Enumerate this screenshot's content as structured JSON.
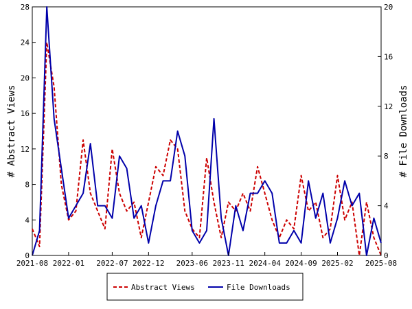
{
  "chart_data": {
    "type": "line",
    "xlabel": "",
    "ylabel": "# Abstract Views",
    "y2label": "# File Downloads",
    "ylim": [
      0,
      28
    ],
    "y2lim": [
      0,
      20
    ],
    "yticks": [
      0,
      4,
      8,
      12,
      16,
      20,
      24,
      28
    ],
    "y2ticks": [
      0,
      4,
      8,
      12,
      16,
      20
    ],
    "xlim": [
      "2021-08",
      "2025-08"
    ],
    "xticks": [
      "2021-08",
      "2022-01",
      "2022-07",
      "2022-12",
      "2023-06",
      "2023-11",
      "2024-04",
      "2024-09",
      "2025-02",
      "2025-08"
    ],
    "grid": false,
    "legend": "bottom-center",
    "x": [
      "2021-08",
      "2021-09",
      "2021-10",
      "2021-11",
      "2021-12",
      "2022-01",
      "2022-02",
      "2022-03",
      "2022-04",
      "2022-05",
      "2022-06",
      "2022-07",
      "2022-08",
      "2022-09",
      "2022-10",
      "2022-11",
      "2022-12",
      "2023-01",
      "2023-02",
      "2023-03",
      "2023-04",
      "2023-05",
      "2023-06",
      "2023-07",
      "2023-08",
      "2023-09",
      "2023-10",
      "2023-11",
      "2023-12",
      "2024-01",
      "2024-02",
      "2024-03",
      "2024-04",
      "2024-05",
      "2024-06",
      "2024-07",
      "2024-08",
      "2024-09",
      "2024-10",
      "2024-11",
      "2024-12",
      "2025-01",
      "2025-02",
      "2025-03",
      "2025-04",
      "2025-05",
      "2025-06",
      "2025-07",
      "2025-08"
    ],
    "series": [
      {
        "name": "Abstract Views",
        "axis": "left",
        "color": "#cc0000",
        "dash": true,
        "values": [
          3,
          1,
          24,
          19,
          8,
          4,
          5,
          13,
          7,
          5,
          3,
          12,
          7,
          5,
          6,
          2,
          6,
          10,
          9,
          13,
          12,
          5,
          3,
          2,
          11,
          6,
          2,
          6,
          5,
          7,
          5,
          10,
          7,
          4,
          2,
          4,
          3,
          9,
          5,
          6,
          2,
          3,
          9,
          4,
          6,
          0,
          6,
          2,
          0
        ]
      },
      {
        "name": "File Downloads",
        "axis": "right",
        "color": "#0000aa",
        "dash": false,
        "values": [
          0,
          2,
          20,
          11,
          7,
          3,
          4,
          5,
          9,
          4,
          4,
          3,
          8,
          7,
          3,
          4,
          1,
          4,
          6,
          6,
          10,
          8,
          2,
          1,
          2,
          11,
          3,
          0,
          4,
          2,
          5,
          5,
          6,
          5,
          1,
          1,
          2,
          1,
          6,
          3,
          5,
          1,
          3,
          6,
          4,
          5,
          0,
          3,
          1
        ]
      }
    ]
  }
}
